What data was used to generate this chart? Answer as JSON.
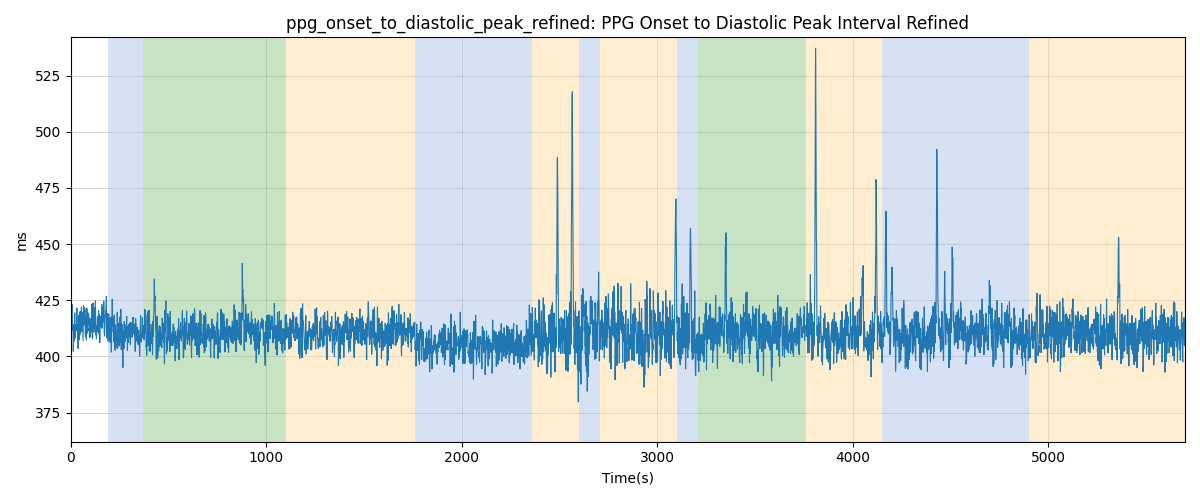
{
  "title": "ppg_onset_to_diastolic_peak_refined: PPG Onset to Diastolic Peak Interval Refined",
  "xlabel": "Time(s)",
  "ylabel": "ms",
  "xlim": [
    0,
    5700
  ],
  "ylim": [
    362,
    542
  ],
  "yticks": [
    375,
    400,
    425,
    450,
    475,
    500,
    525
  ],
  "xticks": [
    0,
    1000,
    2000,
    3000,
    4000,
    5000
  ],
  "line_color": "#1f77b4",
  "line_width": 0.8,
  "figsize": [
    12,
    5
  ],
  "dpi": 100,
  "colored_bands": [
    {
      "xmin": 190,
      "xmax": 370,
      "color": "#AEC6E8",
      "alpha": 0.5
    },
    {
      "xmin": 370,
      "xmax": 1100,
      "color": "#90C98B",
      "alpha": 0.5
    },
    {
      "xmin": 1100,
      "xmax": 1760,
      "color": "#FFDDA0",
      "alpha": 0.5
    },
    {
      "xmin": 1760,
      "xmax": 2360,
      "color": "#AEC6E8",
      "alpha": 0.5
    },
    {
      "xmin": 2360,
      "xmax": 2600,
      "color": "#FFDDA0",
      "alpha": 0.5
    },
    {
      "xmin": 2600,
      "xmax": 2710,
      "color": "#AEC6E8",
      "alpha": 0.5
    },
    {
      "xmin": 2710,
      "xmax": 3100,
      "color": "#FFDDA0",
      "alpha": 0.5
    },
    {
      "xmin": 3100,
      "xmax": 3210,
      "color": "#AEC6E8",
      "alpha": 0.5
    },
    {
      "xmin": 3210,
      "xmax": 3760,
      "color": "#90C98B",
      "alpha": 0.5
    },
    {
      "xmin": 3760,
      "xmax": 4150,
      "color": "#FFDDA0",
      "alpha": 0.5
    },
    {
      "xmin": 4150,
      "xmax": 4900,
      "color": "#AEC6E8",
      "alpha": 0.5
    },
    {
      "xmin": 4900,
      "xmax": 5700,
      "color": "#FFDDA0",
      "alpha": 0.5
    }
  ],
  "seed": 42,
  "n_points": 5600,
  "base_value": 410,
  "noise_std": 7,
  "title_fontsize": 12,
  "label_fontsize": 10,
  "grid_color": "gray",
  "grid_alpha": 0.5,
  "grid_linewidth": 0.5
}
